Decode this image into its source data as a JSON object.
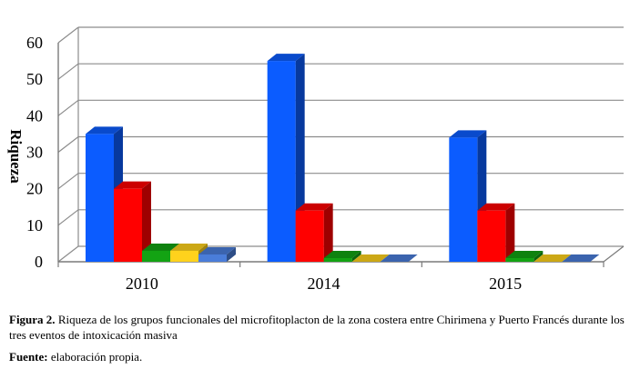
{
  "chart_data": {
    "type": "bar",
    "title": "",
    "xlabel": "",
    "ylabel": "Riqueza",
    "ylim": [
      0,
      60
    ],
    "yticks": [
      "0",
      "10",
      "20",
      "30",
      "40",
      "50",
      "60"
    ],
    "grid": true,
    "legend": "none",
    "categories": [
      "2010",
      "2014",
      "2015"
    ],
    "series": [
      {
        "color": "#0b5cff",
        "values": [
          35,
          55,
          34
        ]
      },
      {
        "color": "#ff0000",
        "values": [
          20,
          14,
          14
        ]
      },
      {
        "color": "#13a313",
        "values": [
          3,
          1,
          1
        ]
      },
      {
        "color": "#ffd21c",
        "values": [
          3,
          0,
          0
        ]
      },
      {
        "color": "#4a7dd9",
        "values": [
          2,
          0,
          0
        ]
      }
    ]
  },
  "caption": {
    "figure_label": "Figura 2.",
    "figure_text": " Riqueza de los grupos funcionales del microfitoplacton de la zona costera entre Chirimena y Puerto Francés durante los tres eventos de intoxicación masiva",
    "source_label": "Fuente:",
    "source_text": " elaboración propia."
  }
}
